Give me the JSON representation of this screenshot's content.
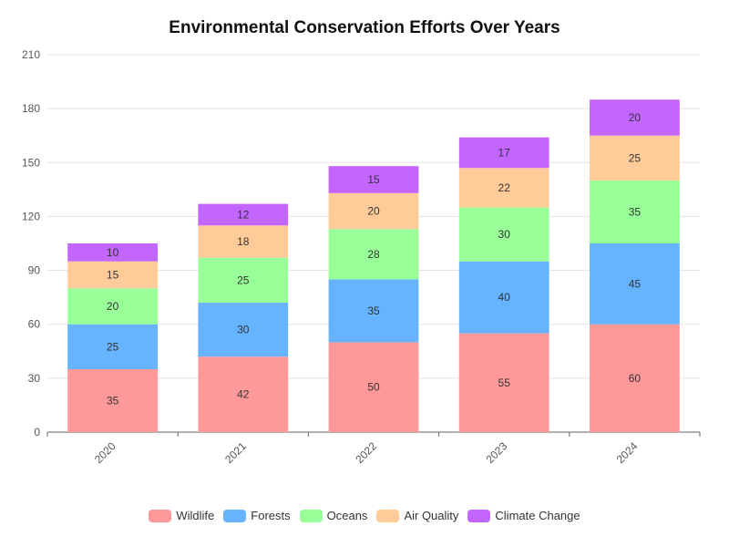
{
  "chart_data": {
    "type": "bar",
    "stacked": true,
    "title": "Environmental Conservation Efforts Over Years",
    "categories": [
      "2020",
      "2021",
      "2022",
      "2023",
      "2024"
    ],
    "series": [
      {
        "name": "Wildlife",
        "color": "#ff9999",
        "values": [
          35,
          42,
          50,
          55,
          60
        ]
      },
      {
        "name": "Forests",
        "color": "#66b3ff",
        "values": [
          25,
          30,
          35,
          40,
          45
        ]
      },
      {
        "name": "Oceans",
        "color": "#99ff99",
        "values": [
          20,
          25,
          28,
          30,
          35
        ]
      },
      {
        "name": "Air Quality",
        "color": "#ffcc99",
        "values": [
          15,
          18,
          20,
          22,
          25
        ]
      },
      {
        "name": "Climate Change",
        "color": "#c266ff",
        "values": [
          10,
          12,
          15,
          17,
          20
        ]
      }
    ],
    "ylim": [
      0,
      210
    ],
    "yticks": [
      0,
      30,
      60,
      90,
      120,
      150,
      180,
      210
    ],
    "grid": true,
    "legend_position": "bottom"
  }
}
